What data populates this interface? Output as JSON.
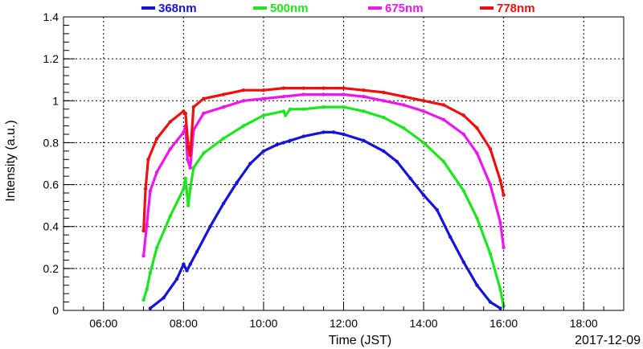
{
  "chart_data": {
    "type": "scatter",
    "xlabel": "Time (JST)",
    "ylabel": "Intensity (a.u.)",
    "date_label": "2017-12-09",
    "x_range": [
      "05:00",
      "19:00"
    ],
    "ylim": [
      0,
      1.4
    ],
    "x_ticks": [
      "06:00",
      "08:00",
      "10:00",
      "12:00",
      "14:00",
      "16:00",
      "18:00"
    ],
    "y_ticks": [
      "0",
      "0.2",
      "0.4",
      "0.6",
      "0.8",
      "1",
      "1.2",
      "1.4"
    ],
    "grid": true,
    "legend_position": "top",
    "series": [
      {
        "name": "368nm",
        "color": "#1515d8",
        "points": [
          [
            "07:10",
            0.01
          ],
          [
            "07:30",
            0.06
          ],
          [
            "07:50",
            0.15
          ],
          [
            "08:00",
            0.22
          ],
          [
            "08:05",
            0.19
          ],
          [
            "08:10",
            0.22
          ],
          [
            "08:20",
            0.28
          ],
          [
            "08:40",
            0.4
          ],
          [
            "09:00",
            0.51
          ],
          [
            "09:20",
            0.61
          ],
          [
            "09:40",
            0.7
          ],
          [
            "10:00",
            0.76
          ],
          [
            "10:20",
            0.79
          ],
          [
            "10:30",
            0.8
          ],
          [
            "10:40",
            0.81
          ],
          [
            "11:00",
            0.83
          ],
          [
            "11:30",
            0.85
          ],
          [
            "11:45",
            0.85
          ],
          [
            "12:00",
            0.84
          ],
          [
            "12:30",
            0.81
          ],
          [
            "13:00",
            0.76
          ],
          [
            "13:20",
            0.71
          ],
          [
            "13:40",
            0.63
          ],
          [
            "14:00",
            0.55
          ],
          [
            "14:20",
            0.48
          ],
          [
            "14:40",
            0.35
          ],
          [
            "15:00",
            0.23
          ],
          [
            "15:20",
            0.12
          ],
          [
            "15:40",
            0.04
          ],
          [
            "15:55",
            0.01
          ]
        ]
      },
      {
        "name": "500nm",
        "color": "#1ee61e",
        "points": [
          [
            "07:00",
            0.05
          ],
          [
            "07:05",
            0.1
          ],
          [
            "07:10",
            0.18
          ],
          [
            "07:20",
            0.3
          ],
          [
            "07:40",
            0.45
          ],
          [
            "08:00",
            0.58
          ],
          [
            "08:03",
            0.63
          ],
          [
            "08:07",
            0.5
          ],
          [
            "08:10",
            0.58
          ],
          [
            "08:15",
            0.68
          ],
          [
            "08:30",
            0.75
          ],
          [
            "09:00",
            0.82
          ],
          [
            "09:30",
            0.88
          ],
          [
            "10:00",
            0.93
          ],
          [
            "10:30",
            0.95
          ],
          [
            "10:33",
            0.93
          ],
          [
            "10:40",
            0.96
          ],
          [
            "11:00",
            0.96
          ],
          [
            "11:30",
            0.97
          ],
          [
            "12:00",
            0.97
          ],
          [
            "12:30",
            0.95
          ],
          [
            "13:00",
            0.92
          ],
          [
            "13:30",
            0.87
          ],
          [
            "14:00",
            0.8
          ],
          [
            "14:30",
            0.71
          ],
          [
            "15:00",
            0.57
          ],
          [
            "15:20",
            0.44
          ],
          [
            "15:40",
            0.27
          ],
          [
            "15:55",
            0.1
          ],
          [
            "16:00",
            0.02
          ]
        ]
      },
      {
        "name": "675nm",
        "color": "#ee16ee",
        "points": [
          [
            "07:00",
            0.26
          ],
          [
            "07:05",
            0.41
          ],
          [
            "07:10",
            0.57
          ],
          [
            "07:20",
            0.66
          ],
          [
            "07:40",
            0.77
          ],
          [
            "08:00",
            0.85
          ],
          [
            "08:03",
            0.88
          ],
          [
            "08:06",
            0.72
          ],
          [
            "08:10",
            0.68
          ],
          [
            "08:15",
            0.86
          ],
          [
            "08:30",
            0.94
          ],
          [
            "09:00",
            0.97
          ],
          [
            "09:30",
            1.0
          ],
          [
            "10:00",
            1.01
          ],
          [
            "10:30",
            1.02
          ],
          [
            "11:00",
            1.03
          ],
          [
            "11:30",
            1.03
          ],
          [
            "12:00",
            1.03
          ],
          [
            "12:30",
            1.02
          ],
          [
            "13:00",
            1.0
          ],
          [
            "13:30",
            0.98
          ],
          [
            "14:00",
            0.95
          ],
          [
            "14:30",
            0.91
          ],
          [
            "15:00",
            0.84
          ],
          [
            "15:20",
            0.75
          ],
          [
            "15:40",
            0.6
          ],
          [
            "15:55",
            0.42
          ],
          [
            "16:00",
            0.3
          ]
        ]
      },
      {
        "name": "778nm",
        "color": "#ee1010",
        "points": [
          [
            "07:00",
            0.38
          ],
          [
            "07:03",
            0.58
          ],
          [
            "07:07",
            0.72
          ],
          [
            "07:20",
            0.82
          ],
          [
            "07:40",
            0.9
          ],
          [
            "08:00",
            0.95
          ],
          [
            "08:03",
            0.94
          ],
          [
            "08:07",
            0.78
          ],
          [
            "08:10",
            0.74
          ],
          [
            "08:15",
            0.97
          ],
          [
            "08:30",
            1.01
          ],
          [
            "09:00",
            1.03
          ],
          [
            "09:30",
            1.05
          ],
          [
            "10:00",
            1.05
          ],
          [
            "10:30",
            1.06
          ],
          [
            "11:00",
            1.06
          ],
          [
            "11:30",
            1.06
          ],
          [
            "12:00",
            1.06
          ],
          [
            "12:30",
            1.05
          ],
          [
            "13:00",
            1.04
          ],
          [
            "13:30",
            1.02
          ],
          [
            "14:00",
            1.0
          ],
          [
            "14:30",
            0.98
          ],
          [
            "15:00",
            0.93
          ],
          [
            "15:20",
            0.87
          ],
          [
            "15:40",
            0.77
          ],
          [
            "15:55",
            0.62
          ],
          [
            "16:00",
            0.55
          ]
        ]
      }
    ]
  }
}
